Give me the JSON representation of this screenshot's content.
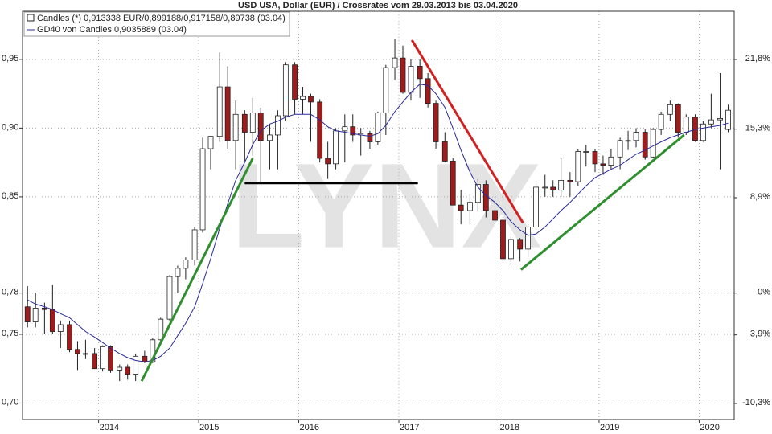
{
  "chart_data": {
    "type": "candlestick",
    "title": "USD USA, Dollar (EUR) / Crossrates vom 29.03.2013 bis 03.04.2020",
    "watermark": "LYNX",
    "x": [
      2013.29,
      2013.37,
      2013.46,
      2013.54,
      2013.62,
      2013.71,
      2013.79,
      2013.87,
      2013.96,
      2014.04,
      2014.12,
      2014.21,
      2014.29,
      2014.37,
      2014.46,
      2014.54,
      2014.62,
      2014.71,
      2014.79,
      2014.87,
      2014.96,
      2015.04,
      2015.12,
      2015.21,
      2015.29,
      2015.37,
      2015.46,
      2015.54,
      2015.62,
      2015.71,
      2015.79,
      2015.87,
      2015.96,
      2016.04,
      2016.12,
      2016.21,
      2016.29,
      2016.37,
      2016.46,
      2016.54,
      2016.62,
      2016.71,
      2016.79,
      2016.87,
      2016.96,
      2017.04,
      2017.12,
      2017.21,
      2017.29,
      2017.37,
      2017.46,
      2017.54,
      2017.62,
      2017.71,
      2017.79,
      2017.87,
      2017.96,
      2018.04,
      2018.12,
      2018.21,
      2018.29,
      2018.37,
      2018.46,
      2018.54,
      2018.62,
      2018.71,
      2018.79,
      2018.87,
      2018.96,
      2019.04,
      2019.12,
      2019.21,
      2019.29,
      2019.37,
      2019.46,
      2019.54,
      2019.62,
      2019.71,
      2019.79,
      2019.87,
      2019.96,
      2020.04,
      2020.12,
      2020.21,
      2020.29
    ],
    "series": [
      {
        "name": "Candles (*) 0,913338 EUR/0,899188/0,917158/0,89738 (03.04)",
        "up_color": "#ffffff",
        "down_color": "#a01c1c",
        "edge_color": "#222222",
        "open": [
          0.77,
          0.759,
          0.769,
          0.768,
          0.752,
          0.757,
          0.739,
          0.736,
          0.736,
          0.725,
          0.741,
          0.724,
          0.726,
          0.721,
          0.734,
          0.73,
          0.746,
          0.761,
          0.792,
          0.798,
          0.804,
          0.826,
          0.885,
          0.894,
          0.93,
          0.891,
          0.91,
          0.897,
          0.911,
          0.891,
          0.895,
          0.909,
          0.946,
          0.921,
          0.923,
          0.919,
          0.878,
          0.874,
          0.898,
          0.901,
          0.895,
          0.896,
          0.89,
          0.911,
          0.944,
          0.951,
          0.926,
          0.945,
          0.936,
          0.918,
          0.89,
          0.876,
          0.844,
          0.84,
          0.846,
          0.859,
          0.84,
          0.833,
          0.805,
          0.819,
          0.812,
          0.828,
          0.857,
          0.857,
          0.855,
          0.862,
          0.861,
          0.883,
          0.883,
          0.874,
          0.873,
          0.879,
          0.891,
          0.891,
          0.897,
          0.879,
          0.899,
          0.91,
          0.917,
          0.897,
          0.908,
          0.891,
          0.903,
          0.906,
          0.899
        ],
        "high": [
          0.785,
          0.78,
          0.773,
          0.786,
          0.76,
          0.76,
          0.745,
          0.746,
          0.74,
          0.742,
          0.742,
          0.728,
          0.728,
          0.736,
          0.738,
          0.747,
          0.762,
          0.793,
          0.8,
          0.806,
          0.828,
          0.893,
          0.894,
          0.955,
          0.945,
          0.92,
          0.913,
          0.922,
          0.915,
          0.903,
          0.913,
          0.948,
          0.948,
          0.93,
          0.925,
          0.921,
          0.89,
          0.9,
          0.91,
          0.91,
          0.9,
          0.898,
          0.912,
          0.946,
          0.965,
          0.96,
          0.95,
          0.95,
          0.94,
          0.92,
          0.897,
          0.878,
          0.855,
          0.852,
          0.863,
          0.862,
          0.85,
          0.836,
          0.821,
          0.82,
          0.83,
          0.862,
          0.866,
          0.862,
          0.878,
          0.868,
          0.885,
          0.888,
          0.885,
          0.88,
          0.885,
          0.893,
          0.898,
          0.9,
          0.899,
          0.9,
          0.912,
          0.92,
          0.918,
          0.91,
          0.91,
          0.905,
          0.925,
          0.94,
          0.917
        ],
        "low": [
          0.755,
          0.755,
          0.75,
          0.75,
          0.74,
          0.737,
          0.724,
          0.732,
          0.725,
          0.723,
          0.722,
          0.716,
          0.717,
          0.716,
          0.729,
          0.729,
          0.745,
          0.76,
          0.78,
          0.79,
          0.8,
          0.824,
          0.87,
          0.89,
          0.885,
          0.87,
          0.876,
          0.88,
          0.86,
          0.87,
          0.87,
          0.905,
          0.91,
          0.91,
          0.89,
          0.875,
          0.863,
          0.87,
          0.875,
          0.89,
          0.88,
          0.885,
          0.888,
          0.895,
          0.935,
          0.925,
          0.92,
          0.922,
          0.915,
          0.885,
          0.875,
          0.844,
          0.83,
          0.83,
          0.84,
          0.835,
          0.83,
          0.802,
          0.8,
          0.803,
          0.806,
          0.826,
          0.85,
          0.85,
          0.85,
          0.85,
          0.858,
          0.872,
          0.868,
          0.866,
          0.87,
          0.87,
          0.884,
          0.886,
          0.877,
          0.878,
          0.895,
          0.905,
          0.893,
          0.895,
          0.89,
          0.89,
          0.9,
          0.87,
          0.897
        ],
        "close": [
          0.759,
          0.769,
          0.768,
          0.752,
          0.757,
          0.739,
          0.736,
          0.736,
          0.725,
          0.741,
          0.724,
          0.726,
          0.721,
          0.734,
          0.73,
          0.746,
          0.761,
          0.792,
          0.798,
          0.804,
          0.826,
          0.885,
          0.894,
          0.93,
          0.891,
          0.91,
          0.897,
          0.911,
          0.891,
          0.895,
          0.909,
          0.946,
          0.921,
          0.923,
          0.919,
          0.878,
          0.874,
          0.898,
          0.901,
          0.895,
          0.896,
          0.89,
          0.911,
          0.944,
          0.951,
          0.926,
          0.945,
          0.936,
          0.918,
          0.89,
          0.876,
          0.844,
          0.84,
          0.846,
          0.859,
          0.84,
          0.833,
          0.805,
          0.819,
          0.812,
          0.828,
          0.857,
          0.857,
          0.855,
          0.862,
          0.861,
          0.883,
          0.883,
          0.874,
          0.873,
          0.879,
          0.891,
          0.891,
          0.897,
          0.879,
          0.899,
          0.91,
          0.917,
          0.897,
          0.908,
          0.891,
          0.903,
          0.906,
          0.907,
          0.913
        ]
      },
      {
        "name": "GD40 von Candles 0,9035889 (03.04)",
        "type": "line",
        "color": "#2a2a9a",
        "values": [
          0.775,
          0.772,
          0.77,
          0.768,
          0.765,
          0.762,
          0.757,
          0.752,
          0.748,
          0.744,
          0.74,
          0.736,
          0.733,
          0.731,
          0.73,
          0.731,
          0.734,
          0.74,
          0.749,
          0.758,
          0.77,
          0.787,
          0.805,
          0.827,
          0.845,
          0.862,
          0.875,
          0.888,
          0.898,
          0.903,
          0.905,
          0.908,
          0.91,
          0.91,
          0.91,
          0.906,
          0.901,
          0.898,
          0.897,
          0.896,
          0.895,
          0.894,
          0.896,
          0.902,
          0.912,
          0.919,
          0.926,
          0.932,
          0.931,
          0.925,
          0.915,
          0.9,
          0.884,
          0.868,
          0.857,
          0.851,
          0.846,
          0.84,
          0.832,
          0.826,
          0.822,
          0.823,
          0.828,
          0.834,
          0.84,
          0.846,
          0.852,
          0.858,
          0.864,
          0.867,
          0.87,
          0.873,
          0.877,
          0.881,
          0.884,
          0.887,
          0.89,
          0.893,
          0.895,
          0.897,
          0.899,
          0.9,
          0.901,
          0.902,
          0.9036
        ]
      }
    ],
    "trend_lines": [
      {
        "color": "#2f8f2f",
        "x": [
          2014.43,
          2015.54
        ],
        "y": [
          0.716,
          0.878
        ]
      },
      {
        "color": "#000000",
        "x": [
          2015.46,
          2017.19
        ],
        "y": [
          0.86,
          0.86
        ]
      },
      {
        "color": "#d42020",
        "x": [
          2017.13,
          2018.24
        ],
        "y": [
          0.964,
          0.831
        ]
      },
      {
        "color": "#2f8f2f",
        "x": [
          2018.22,
          2019.85
        ],
        "y": [
          0.797,
          0.895
        ]
      }
    ],
    "xlim": [
      2013.24,
      2020.35
    ],
    "xticks": [
      2014,
      2015,
      2016,
      2017,
      2018,
      2019,
      2020
    ],
    "ylim": [
      0.688,
      0.985
    ],
    "yticks": [
      {
        "value": 0.7,
        "label": "0,70"
      },
      {
        "value": 0.75,
        "label": "0,75"
      },
      {
        "value": 0.78,
        "label": "0,78"
      },
      {
        "value": 0.85,
        "label": "0,85"
      },
      {
        "value": 0.9,
        "label": "0,90"
      },
      {
        "value": 0.95,
        "label": "0,95"
      }
    ],
    "y2lim": [
      -11.8,
      26.3
    ],
    "y2ticks": [
      {
        "value": -10.3,
        "label": "-10,3%"
      },
      {
        "value": -3.9,
        "label": "-3,9%"
      },
      {
        "value": 0,
        "label": "0%"
      },
      {
        "value": 8.9,
        "label": "8,9%"
      },
      {
        "value": 15.3,
        "label": "15,3%"
      },
      {
        "value": 21.8,
        "label": "21,8%"
      }
    ],
    "grid": true
  }
}
